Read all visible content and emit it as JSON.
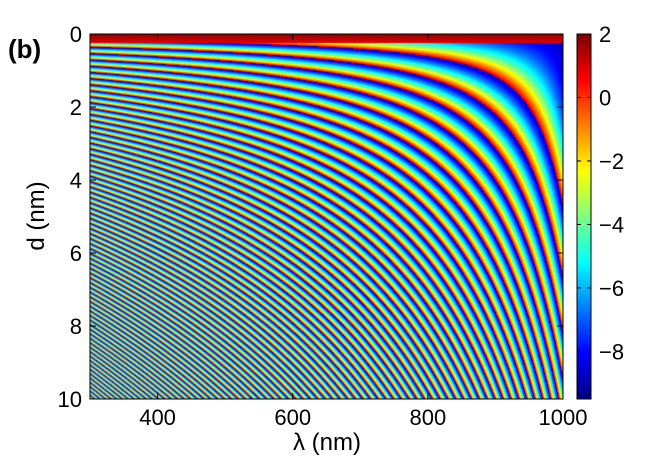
{
  "panel_label": "(b)",
  "chart_data": {
    "type": "heatmap",
    "title": "",
    "xlabel": "λ (nm)",
    "ylabel": "d (nm)",
    "xlim": [
      300,
      1000
    ],
    "ylim": [
      0,
      10
    ],
    "y_axis_inverted": true,
    "xticks": [
      400,
      600,
      800,
      1000
    ],
    "yticks": [
      0,
      2,
      4,
      6,
      8,
      10
    ],
    "colorbar": {
      "colormap": "jet",
      "range": [
        -9.5,
        2
      ],
      "ticks": [
        2,
        0,
        -2,
        -4,
        -6,
        -8
      ]
    },
    "grid": false
  }
}
